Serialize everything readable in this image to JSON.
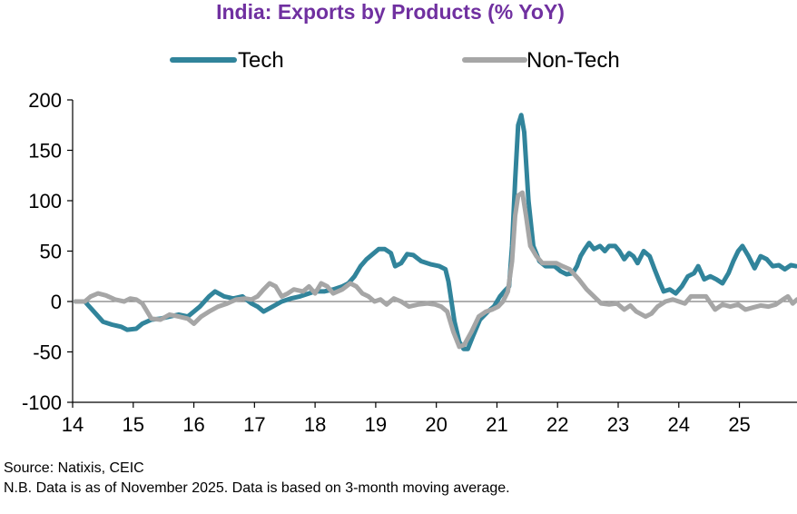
{
  "chart_data": {
    "type": "line",
    "title": "India: Exports by Products (% YoY)",
    "title_color": "#7030A0",
    "xlabel": "",
    "ylabel": "",
    "ylim": [
      -100,
      200
    ],
    "yticks": [
      200,
      150,
      100,
      50,
      0,
      -50,
      -100
    ],
    "xlim": [
      2014.0,
      2025.95
    ],
    "xticks": [
      {
        "label": "14",
        "x": 2014.0
      },
      {
        "label": "15",
        "x": 2015.0
      },
      {
        "label": "16",
        "x": 2016.0
      },
      {
        "label": "17",
        "x": 2017.0
      },
      {
        "label": "18",
        "x": 2018.0
      },
      {
        "label": "19",
        "x": 2019.0
      },
      {
        "label": "20",
        "x": 2020.0
      },
      {
        "label": "21",
        "x": 2021.0
      },
      {
        "label": "22",
        "x": 2022.0
      },
      {
        "label": "23",
        "x": 2023.0
      },
      {
        "label": "24",
        "x": 2024.0
      },
      {
        "label": "25",
        "x": 2025.0
      }
    ],
    "legend_position": "top",
    "series": [
      {
        "name": "Tech",
        "color": "#31849B",
        "points": [
          [
            2014.05,
            0
          ],
          [
            2014.2,
            0
          ],
          [
            2014.35,
            -10
          ],
          [
            2014.5,
            -20
          ],
          [
            2014.65,
            -23
          ],
          [
            2014.8,
            -25
          ],
          [
            2014.9,
            -28
          ],
          [
            2015.05,
            -27
          ],
          [
            2015.15,
            -22
          ],
          [
            2015.3,
            -18
          ],
          [
            2015.45,
            -17
          ],
          [
            2015.6,
            -15
          ],
          [
            2015.75,
            -13
          ],
          [
            2015.9,
            -15
          ],
          [
            2016.0,
            -10
          ],
          [
            2016.1,
            -5
          ],
          [
            2016.25,
            5
          ],
          [
            2016.35,
            10
          ],
          [
            2016.5,
            5
          ],
          [
            2016.65,
            3
          ],
          [
            2016.8,
            5
          ],
          [
            2016.95,
            -2
          ],
          [
            2017.05,
            -5
          ],
          [
            2017.15,
            -10
          ],
          [
            2017.3,
            -5
          ],
          [
            2017.45,
            0
          ],
          [
            2017.6,
            3
          ],
          [
            2017.75,
            5
          ],
          [
            2017.9,
            8
          ],
          [
            2018.0,
            10
          ],
          [
            2018.15,
            10
          ],
          [
            2018.3,
            12
          ],
          [
            2018.45,
            15
          ],
          [
            2018.55,
            18
          ],
          [
            2018.65,
            25
          ],
          [
            2018.75,
            35
          ],
          [
            2018.85,
            42
          ],
          [
            2018.95,
            47
          ],
          [
            2019.05,
            52
          ],
          [
            2019.15,
            52
          ],
          [
            2019.25,
            48
          ],
          [
            2019.32,
            35
          ],
          [
            2019.42,
            38
          ],
          [
            2019.52,
            47
          ],
          [
            2019.62,
            46
          ],
          [
            2019.75,
            40
          ],
          [
            2019.9,
            37
          ],
          [
            2020.05,
            35
          ],
          [
            2020.15,
            32
          ],
          [
            2020.2,
            20
          ],
          [
            2020.3,
            -20
          ],
          [
            2020.38,
            -40
          ],
          [
            2020.45,
            -47
          ],
          [
            2020.52,
            -47
          ],
          [
            2020.6,
            -35
          ],
          [
            2020.72,
            -18
          ],
          [
            2020.85,
            -10
          ],
          [
            2020.95,
            -5
          ],
          [
            2021.05,
            5
          ],
          [
            2021.12,
            10
          ],
          [
            2021.2,
            15
          ],
          [
            2021.25,
            55
          ],
          [
            2021.3,
            120
          ],
          [
            2021.35,
            175
          ],
          [
            2021.4,
            185
          ],
          [
            2021.45,
            168
          ],
          [
            2021.52,
            100
          ],
          [
            2021.6,
            55
          ],
          [
            2021.7,
            40
          ],
          [
            2021.8,
            35
          ],
          [
            2021.95,
            35
          ],
          [
            2022.05,
            30
          ],
          [
            2022.15,
            27
          ],
          [
            2022.25,
            28
          ],
          [
            2022.32,
            35
          ],
          [
            2022.38,
            45
          ],
          [
            2022.45,
            52
          ],
          [
            2022.52,
            58
          ],
          [
            2022.6,
            52
          ],
          [
            2022.7,
            55
          ],
          [
            2022.78,
            50
          ],
          [
            2022.85,
            55
          ],
          [
            2022.95,
            55
          ],
          [
            2023.02,
            50
          ],
          [
            2023.1,
            42
          ],
          [
            2023.18,
            48
          ],
          [
            2023.25,
            45
          ],
          [
            2023.32,
            38
          ],
          [
            2023.42,
            50
          ],
          [
            2023.52,
            45
          ],
          [
            2023.6,
            32
          ],
          [
            2023.68,
            20
          ],
          [
            2023.75,
            10
          ],
          [
            2023.85,
            12
          ],
          [
            2023.95,
            8
          ],
          [
            2024.05,
            15
          ],
          [
            2024.15,
            25
          ],
          [
            2024.25,
            28
          ],
          [
            2024.32,
            35
          ],
          [
            2024.42,
            22
          ],
          [
            2024.52,
            25
          ],
          [
            2024.62,
            22
          ],
          [
            2024.72,
            18
          ],
          [
            2024.82,
            28
          ],
          [
            2024.9,
            40
          ],
          [
            2024.98,
            50
          ],
          [
            2025.05,
            55
          ],
          [
            2025.15,
            45
          ],
          [
            2025.25,
            33
          ],
          [
            2025.35,
            45
          ],
          [
            2025.45,
            42
          ],
          [
            2025.55,
            35
          ],
          [
            2025.65,
            36
          ],
          [
            2025.75,
            32
          ],
          [
            2025.85,
            36
          ],
          [
            2025.93,
            35
          ]
        ]
      },
      {
        "name": "Non-Tech",
        "color": "#A6A6A6",
        "points": [
          [
            2014.05,
            0
          ],
          [
            2014.2,
            0
          ],
          [
            2014.3,
            5
          ],
          [
            2014.42,
            8
          ],
          [
            2014.55,
            6
          ],
          [
            2014.7,
            2
          ],
          [
            2014.85,
            0
          ],
          [
            2014.95,
            3
          ],
          [
            2015.05,
            2
          ],
          [
            2015.15,
            -2
          ],
          [
            2015.3,
            -17
          ],
          [
            2015.45,
            -18
          ],
          [
            2015.6,
            -13
          ],
          [
            2015.75,
            -15
          ],
          [
            2015.9,
            -17
          ],
          [
            2016.0,
            -22
          ],
          [
            2016.12,
            -15
          ],
          [
            2016.25,
            -10
          ],
          [
            2016.4,
            -5
          ],
          [
            2016.55,
            -2
          ],
          [
            2016.7,
            2
          ],
          [
            2016.85,
            3
          ],
          [
            2016.95,
            2
          ],
          [
            2017.05,
            5
          ],
          [
            2017.15,
            12
          ],
          [
            2017.25,
            18
          ],
          [
            2017.35,
            15
          ],
          [
            2017.45,
            5
          ],
          [
            2017.55,
            8
          ],
          [
            2017.65,
            12
          ],
          [
            2017.8,
            10
          ],
          [
            2017.9,
            15
          ],
          [
            2018.0,
            8
          ],
          [
            2018.1,
            18
          ],
          [
            2018.2,
            15
          ],
          [
            2018.3,
            8
          ],
          [
            2018.45,
            12
          ],
          [
            2018.58,
            18
          ],
          [
            2018.68,
            15
          ],
          [
            2018.78,
            8
          ],
          [
            2018.88,
            5
          ],
          [
            2018.98,
            0
          ],
          [
            2019.08,
            2
          ],
          [
            2019.18,
            -3
          ],
          [
            2019.3,
            3
          ],
          [
            2019.42,
            0
          ],
          [
            2019.55,
            -5
          ],
          [
            2019.7,
            -3
          ],
          [
            2019.85,
            -2
          ],
          [
            2019.98,
            -3
          ],
          [
            2020.08,
            -5
          ],
          [
            2020.18,
            -10
          ],
          [
            2020.28,
            -30
          ],
          [
            2020.38,
            -45
          ],
          [
            2020.46,
            -43
          ],
          [
            2020.58,
            -30
          ],
          [
            2020.7,
            -15
          ],
          [
            2020.82,
            -10
          ],
          [
            2020.92,
            -8
          ],
          [
            2021.02,
            -5
          ],
          [
            2021.1,
            0
          ],
          [
            2021.18,
            10
          ],
          [
            2021.25,
            40
          ],
          [
            2021.3,
            85
          ],
          [
            2021.35,
            105
          ],
          [
            2021.42,
            108
          ],
          [
            2021.48,
            85
          ],
          [
            2021.55,
            55
          ],
          [
            2021.65,
            45
          ],
          [
            2021.75,
            38
          ],
          [
            2021.88,
            38
          ],
          [
            2021.98,
            38
          ],
          [
            2022.08,
            35
          ],
          [
            2022.2,
            32
          ],
          [
            2022.35,
            22
          ],
          [
            2022.48,
            12
          ],
          [
            2022.6,
            5
          ],
          [
            2022.72,
            -2
          ],
          [
            2022.85,
            -3
          ],
          [
            2022.98,
            -2
          ],
          [
            2023.1,
            -8
          ],
          [
            2023.2,
            -4
          ],
          [
            2023.3,
            -10
          ],
          [
            2023.45,
            -15
          ],
          [
            2023.55,
            -12
          ],
          [
            2023.65,
            -5
          ],
          [
            2023.78,
            0
          ],
          [
            2023.9,
            2
          ],
          [
            2024.0,
            0
          ],
          [
            2024.1,
            -2
          ],
          [
            2024.2,
            5
          ],
          [
            2024.32,
            5
          ],
          [
            2024.45,
            5
          ],
          [
            2024.6,
            -8
          ],
          [
            2024.72,
            -3
          ],
          [
            2024.85,
            -5
          ],
          [
            2024.98,
            -3
          ],
          [
            2025.1,
            -8
          ],
          [
            2025.22,
            -6
          ],
          [
            2025.35,
            -4
          ],
          [
            2025.48,
            -5
          ],
          [
            2025.6,
            -3
          ],
          [
            2025.72,
            2
          ],
          [
            2025.8,
            5
          ],
          [
            2025.88,
            -2
          ],
          [
            2025.95,
            2
          ]
        ]
      }
    ]
  },
  "footnotes": {
    "source": "Source: Natixis, CEIC",
    "note": "N.B. Data is as of November 2025. Data is based on 3-month moving average."
  }
}
